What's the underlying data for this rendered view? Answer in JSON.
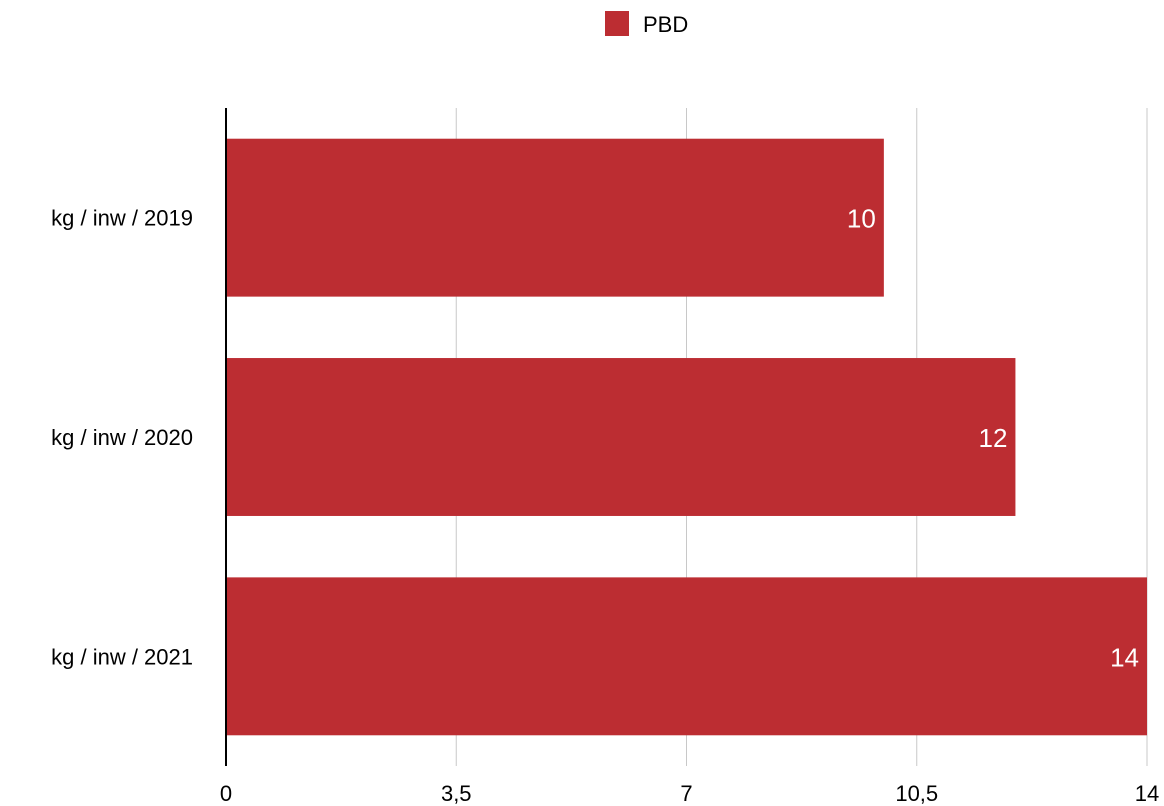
{
  "chart_data": {
    "type": "bar",
    "orientation": "horizontal",
    "categories": [
      "kg / inw / 2019",
      "kg / inw / 2020",
      "kg / inw / 2021"
    ],
    "series": [
      {
        "name": "PBD",
        "values": [
          10,
          12,
          14
        ],
        "data_labels": [
          "10",
          "12",
          "14"
        ],
        "color": "#bc2d32"
      }
    ],
    "x_ticks": [
      {
        "value": 0,
        "label": "0"
      },
      {
        "value": 3.5,
        "label": "3,5"
      },
      {
        "value": 7,
        "label": "7"
      },
      {
        "value": 10.5,
        "label": "10,5"
      },
      {
        "value": 14,
        "label": "14"
      }
    ],
    "xlim": [
      0,
      14
    ],
    "grid": "vertical",
    "legend_position": "top-center",
    "title": "",
    "xlabel": "",
    "ylabel": ""
  }
}
